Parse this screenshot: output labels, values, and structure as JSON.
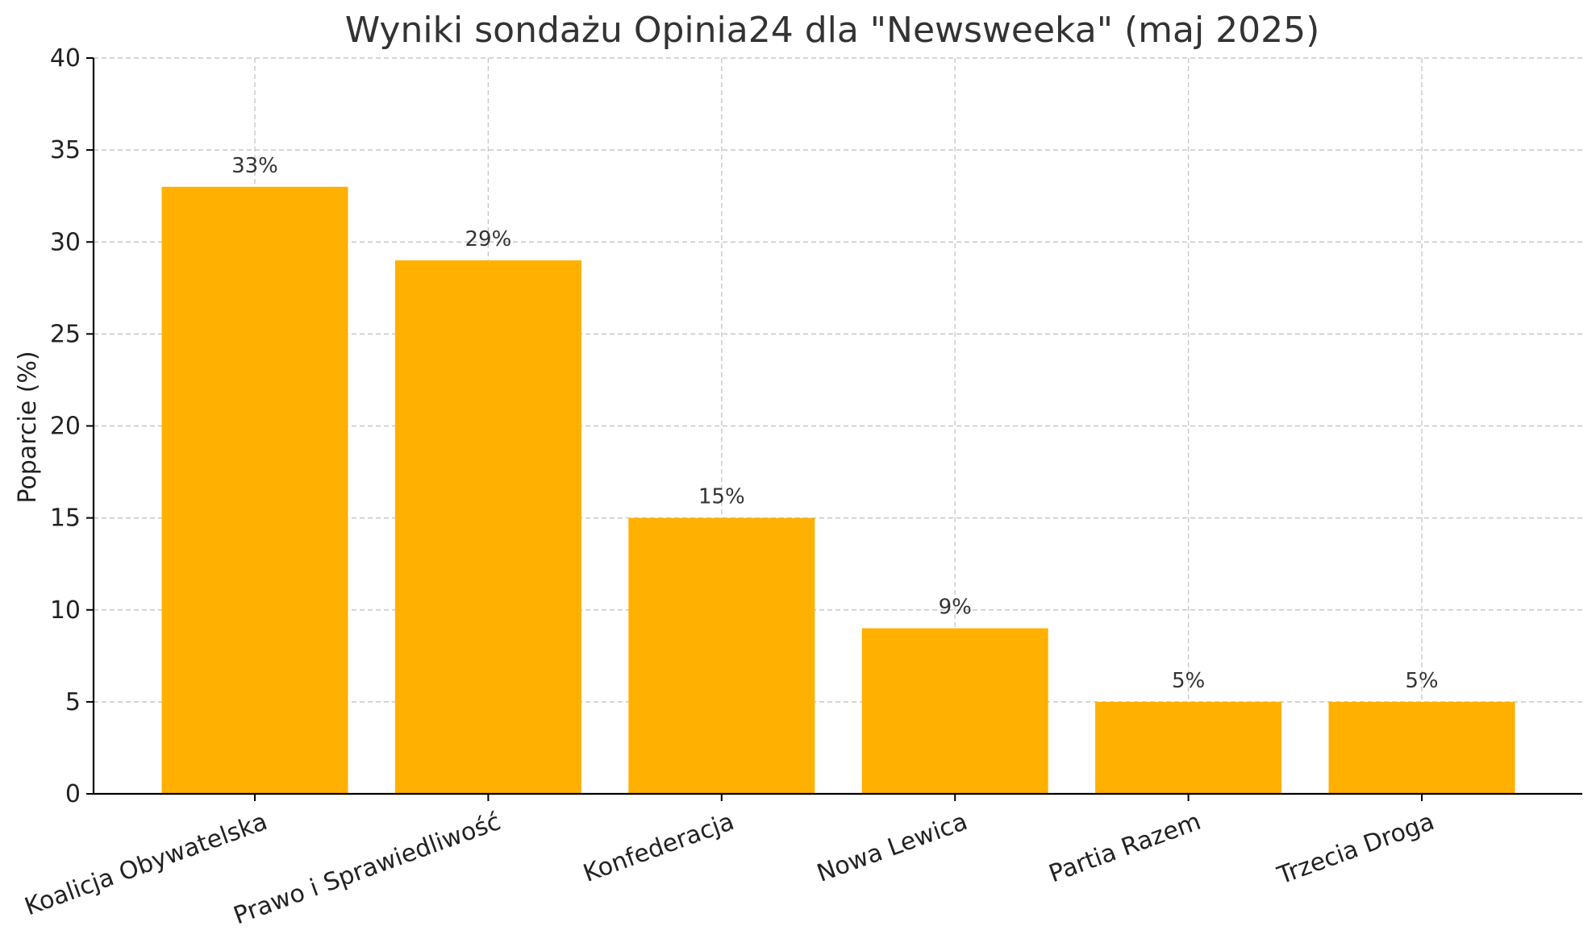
{
  "chart_data": {
    "type": "bar",
    "title": "Wyniki sondażu Opinia24 dla \"Newsweeka\" (maj 2025)",
    "xlabel": "",
    "ylabel": "Poparcie (%)",
    "categories": [
      "Koalicja Obywatelska",
      "Prawo i Sprawiedliwość",
      "Konfederacja",
      "Nowa Lewica",
      "Partia Razem",
      "Trzecia Droga"
    ],
    "values": [
      33,
      29,
      15,
      9,
      5,
      5
    ],
    "data_labels": [
      "33%",
      "29%",
      "15%",
      "9%",
      "5%",
      "5%"
    ],
    "ylim": [
      0,
      40
    ],
    "yticks": [
      0,
      5,
      10,
      15,
      20,
      25,
      30,
      35,
      40
    ],
    "ytick_labels": [
      "0",
      "5",
      "10",
      "15",
      "20",
      "25",
      "30",
      "35",
      "40"
    ],
    "grid": true,
    "bar_color": "#FFB000",
    "x_tick_rotation": "tilted"
  }
}
